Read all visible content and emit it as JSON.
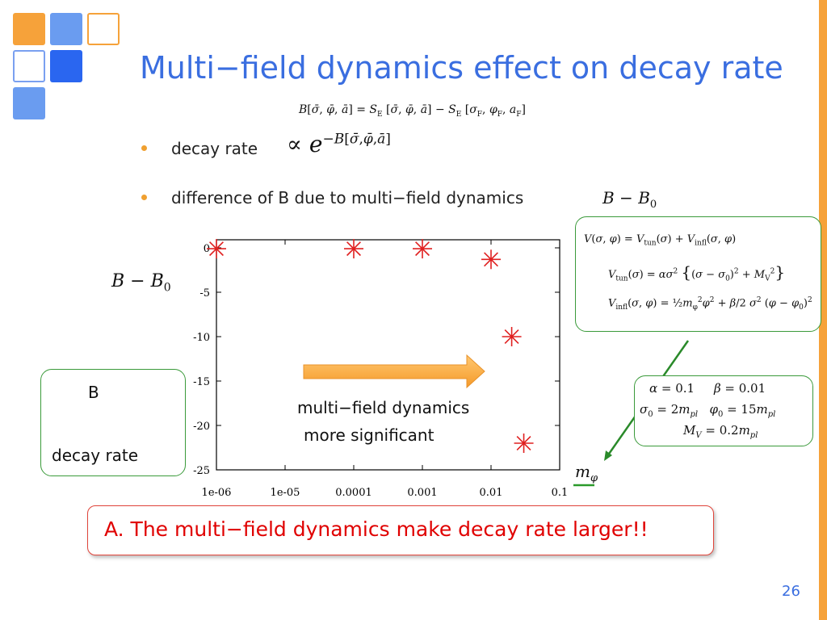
{
  "slide": {
    "title": "Multi−field dynamics effect on decay rate",
    "page_number": "26",
    "colors": {
      "title": "#3a6ee0",
      "accent_orange": "#f6a23a",
      "accent_blue": "#3a78f0",
      "box_green": "#3a9a3a",
      "conclusion_red": "#e00000",
      "marker": "#e02020"
    }
  },
  "definition_formula": "B[σ̄, φ̄, ā] = S_E [σ̄, φ̄, ā] − S_E [σ_F, φ_F, a_F]",
  "bullets": [
    {
      "text": "decay rate",
      "formula": "∝ e^{−B[σ̄, φ̄, ā]}"
    },
    {
      "text": "difference of B due to multi−field dynamics",
      "formula": "B − B₀"
    }
  ],
  "potential_box": {
    "lines": [
      "V(σ, φ) = V_tun(σ) + V_infl(σ, φ)",
      "V_tun(σ) = ασ² {(σ − σ₀)² + M_V²}",
      "V_infl(σ, φ) = ½ m_φ² φ² + β/2 σ² (φ − φ₀)²"
    ]
  },
  "parameter_box": {
    "lines": [
      "α = 0.1    β = 0.01",
      "σ₀ = 2m_pl   φ₀ = 15m_pl",
      "M_V = 0.2m_pl"
    ]
  },
  "left_box": {
    "label_b": "B",
    "label_rate": "decay rate"
  },
  "arrow_caption": [
    "multi−field dynamics",
    "more significant"
  ],
  "conclusion": "A. The multi−field dynamics make decay rate larger!!",
  "chart_data": {
    "type": "scatter",
    "xscale": "log",
    "xlim": [
      1e-06,
      0.1
    ],
    "ylim": [
      -25,
      0
    ],
    "ylabel": "B − B₀",
    "xlabel": "m_φ",
    "x_ticks": [
      "1e-06",
      "1e-05",
      "0.0001",
      "0.001",
      "0.01",
      "0.1"
    ],
    "y_ticks": [
      "0",
      "-5",
      "-10",
      "-15",
      "-20",
      "-25"
    ],
    "marker": "asterisk",
    "marker_color": "#e02020",
    "grid": false,
    "points": [
      {
        "x": 1e-06,
        "y": -0.1
      },
      {
        "x": 0.0001,
        "y": -0.1
      },
      {
        "x": 0.001,
        "y": -0.1
      },
      {
        "x": 0.01,
        "y": -1.3
      },
      {
        "x": 0.02,
        "y": -10.0
      },
      {
        "x": 0.03,
        "y": -22.0
      }
    ]
  }
}
